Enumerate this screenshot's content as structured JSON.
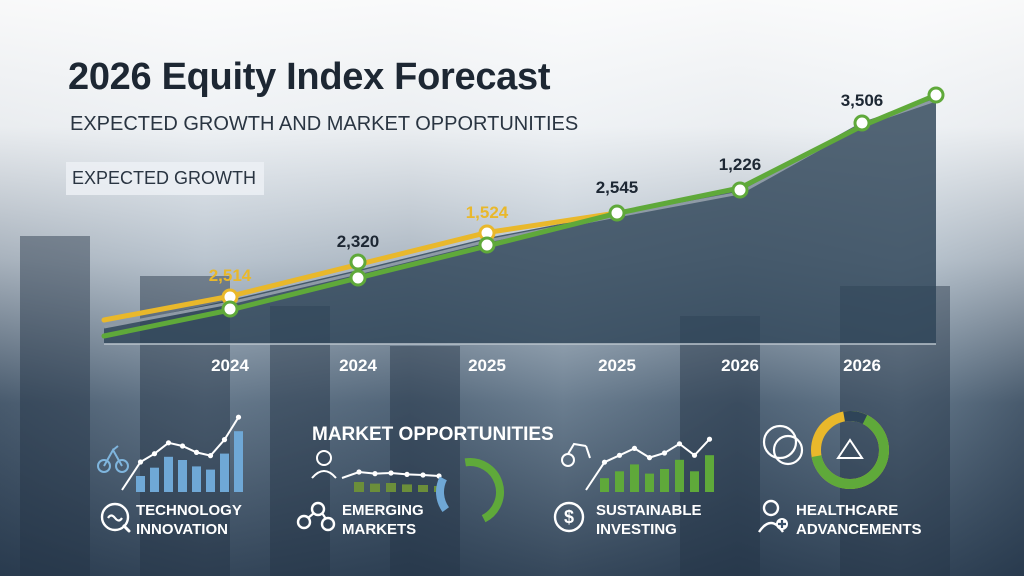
{
  "header": {
    "title": "2026 Equity Index Forecast",
    "subtitle": "EXPECTED GROWTH AND MARKET OPPORTUNITIES",
    "tag": "EXPECTED GROWTH"
  },
  "chart_data": {
    "type": "line",
    "categories": [
      "2024",
      "2024",
      "2025",
      "2025",
      "2026",
      "2026"
    ],
    "series": [
      {
        "values": [
          2514,
          null,
          1524,
          null,
          null,
          null
        ],
        "color": "#e9b82b"
      },
      {
        "values": [
          null,
          2320,
          null,
          2545,
          1226,
          3506
        ],
        "color": "#5fa93a"
      }
    ],
    "data_labels": [
      {
        "index": 0,
        "text": "2,514",
        "color": "#e9b82b"
      },
      {
        "index": 1,
        "text": "2,320",
        "color": "#1d2733"
      },
      {
        "index": 2,
        "text": "1,524",
        "color": "#e9b82b"
      },
      {
        "index": 3,
        "text": "2,545",
        "color": "#1d2733"
      },
      {
        "index": 4,
        "text": "1,226",
        "color": "#1d2733"
      },
      {
        "index": 5,
        "text": "3,506",
        "color": "#1d2733"
      }
    ],
    "area_color": "#2e4458",
    "grid": false,
    "legend": "none"
  },
  "opportunities": {
    "title": "MARKET OPPORTUNITIES",
    "items": [
      {
        "line1": "TECHNOLOGY",
        "line2": "INNOVATION",
        "icon": "technology-icon"
      },
      {
        "line1": "EMERGING",
        "line2": "MARKETS",
        "icon": "network-icon"
      },
      {
        "line1": "SUSTAINABLE",
        "line2": "INVESTING",
        "icon": "dollar-icon"
      },
      {
        "line1": "HEALTHCARE",
        "line2": "ADVANCEMENTS",
        "icon": "healthcare-icon"
      }
    ],
    "mini_charts": {
      "tech_bars": [
        0.25,
        0.38,
        0.55,
        0.5,
        0.4,
        0.35,
        0.6,
        0.95
      ],
      "emerging_bars": [
        0.5,
        0.42,
        0.45,
        0.38,
        0.35,
        0.3
      ],
      "sustainable_bars": [
        0.3,
        0.45,
        0.6,
        0.4,
        0.5,
        0.7,
        0.45,
        0.8
      ],
      "emerging_gauge": 0.5,
      "healthcare_donut": 0.72
    }
  }
}
